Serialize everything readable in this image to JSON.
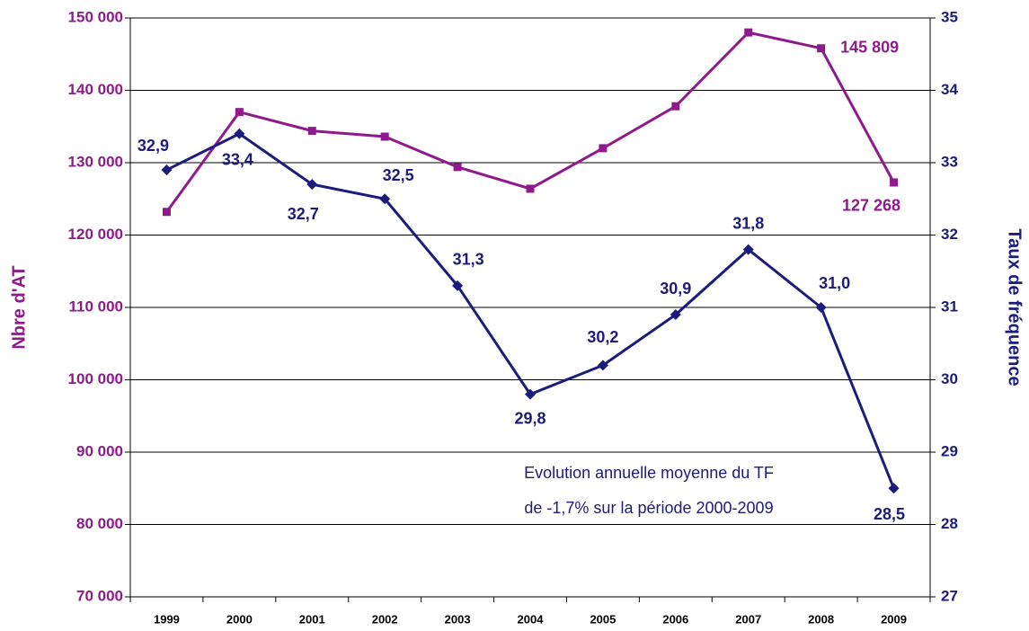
{
  "chart_data": {
    "type": "line",
    "categories": [
      "1999",
      "2000",
      "2001",
      "2002",
      "2003",
      "2004",
      "2005",
      "2006",
      "2007",
      "2008",
      "2009"
    ],
    "series": [
      {
        "name": "Nbre d'AT",
        "color": "#8e1a8c",
        "axis": "y",
        "values": [
          123200,
          137000,
          134400,
          133600,
          129400,
          126400,
          132000,
          137800,
          148000,
          145809,
          127268
        ],
        "value_labels": [
          null,
          null,
          null,
          null,
          null,
          null,
          null,
          null,
          null,
          "145 809",
          "127 268"
        ]
      },
      {
        "name": "Taux de fréquence",
        "color": "#1c1c7c",
        "axis": "y2",
        "values": [
          32.9,
          33.4,
          32.7,
          32.5,
          31.3,
          29.8,
          30.2,
          30.9,
          31.8,
          31.0,
          28.5
        ],
        "value_labels": [
          "32,9",
          "33,4",
          "32,7",
          "32,5",
          "31,3",
          "29,8",
          "30,2",
          "30,9",
          "31,8",
          "31,0",
          "28,5"
        ]
      }
    ],
    "ylabel": "Nbre d'AT",
    "y2label": "Taux de fréquence",
    "ylim": [
      70000,
      150000
    ],
    "yticks": [
      {
        "value": 70000,
        "label": "70 000"
      },
      {
        "value": 80000,
        "label": "80 000"
      },
      {
        "value": 90000,
        "label": "90 000"
      },
      {
        "value": 100000,
        "label": "100 000"
      },
      {
        "value": 110000,
        "label": "110 000"
      },
      {
        "value": 120000,
        "label": "120 000"
      },
      {
        "value": 130000,
        "label": "130 000"
      },
      {
        "value": 140000,
        "label": "140 000"
      },
      {
        "value": 150000,
        "label": "150 000"
      }
    ],
    "y2lim": [
      27,
      35
    ],
    "y2ticks": [
      27,
      28,
      29,
      30,
      31,
      32,
      33,
      34,
      35
    ],
    "grid": true,
    "annotations": [
      "Evolution annuelle moyenne du TF",
      "de -1,7% sur la période 2000-2009"
    ]
  }
}
